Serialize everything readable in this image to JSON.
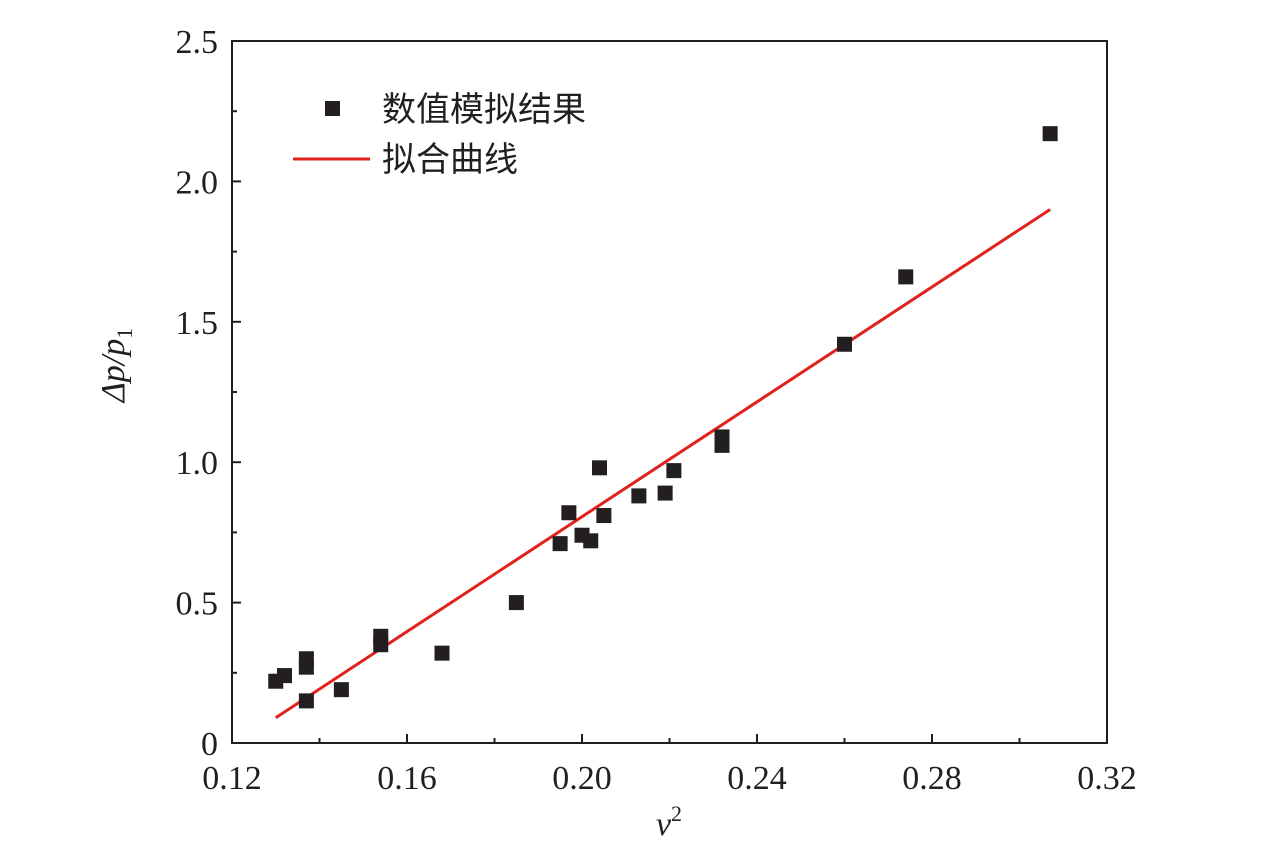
{
  "chart_data": {
    "type": "scatter",
    "title": "",
    "xlabel": "v",
    "xlabel_superscript": "2",
    "ylabel": "Δp/p",
    "ylabel_subscript": "1",
    "xlim": [
      0.12,
      0.32
    ],
    "ylim": [
      0,
      2.5
    ],
    "xticks": [
      0.12,
      0.16,
      0.2,
      0.24,
      0.28,
      0.32
    ],
    "xtick_labels": [
      "0.12",
      "0.16",
      "0.20",
      "0.24",
      "0.28",
      "0.32"
    ],
    "yticks": [
      0,
      0.5,
      1.0,
      1.5,
      2.0,
      2.5
    ],
    "ytick_labels": [
      "0",
      "0.5",
      "1.0",
      "1.5",
      "2.0",
      "2.5"
    ],
    "grid": false,
    "legend_position": "top-left",
    "series": [
      {
        "name": "数值模拟结果",
        "kind": "scatter",
        "marker": "square",
        "color": "#231f20",
        "points": [
          {
            "x": 0.13,
            "y": 0.22
          },
          {
            "x": 0.132,
            "y": 0.24
          },
          {
            "x": 0.137,
            "y": 0.15
          },
          {
            "x": 0.137,
            "y": 0.27
          },
          {
            "x": 0.137,
            "y": 0.3
          },
          {
            "x": 0.145,
            "y": 0.19
          },
          {
            "x": 0.154,
            "y": 0.35
          },
          {
            "x": 0.154,
            "y": 0.38
          },
          {
            "x": 0.168,
            "y": 0.32
          },
          {
            "x": 0.185,
            "y": 0.5
          },
          {
            "x": 0.195,
            "y": 0.71
          },
          {
            "x": 0.197,
            "y": 0.82
          },
          {
            "x": 0.2,
            "y": 0.74
          },
          {
            "x": 0.202,
            "y": 0.72
          },
          {
            "x": 0.204,
            "y": 0.98
          },
          {
            "x": 0.205,
            "y": 0.81
          },
          {
            "x": 0.213,
            "y": 0.88
          },
          {
            "x": 0.219,
            "y": 0.89
          },
          {
            "x": 0.221,
            "y": 0.97
          },
          {
            "x": 0.232,
            "y": 1.06
          },
          {
            "x": 0.232,
            "y": 1.09
          },
          {
            "x": 0.26,
            "y": 1.42
          },
          {
            "x": 0.274,
            "y": 1.66
          },
          {
            "x": 0.307,
            "y": 2.17
          }
        ]
      },
      {
        "name": "拟合曲线",
        "kind": "line",
        "color": "#e0211c",
        "points": [
          {
            "x": 0.13,
            "y": 0.09
          },
          {
            "x": 0.307,
            "y": 1.9
          }
        ]
      }
    ]
  }
}
